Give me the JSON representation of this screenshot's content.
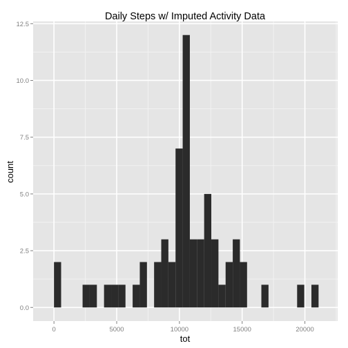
{
  "chart_data": {
    "type": "bar",
    "title": "Daily Steps w/ Imputed Activity Data",
    "xlabel": "tot",
    "ylabel": "count",
    "xlim": [
      -1660,
      22610
    ],
    "ylim": [
      -0.6,
      12.6
    ],
    "x_ticks": [
      0,
      5000,
      10000,
      15000,
      20000
    ],
    "x_tick_labels": [
      "0",
      "5000",
      "10000",
      "15000",
      "20000"
    ],
    "y_ticks": [
      0,
      2.5,
      5,
      7.5,
      10,
      12.5
    ],
    "y_tick_labels": [
      "0.0",
      "2.5",
      "5.0",
      "7.5",
      "10.0",
      "12.5"
    ],
    "grid": true,
    "bin_width": 570,
    "bins": [
      {
        "x0": 0,
        "x1": 570,
        "count": 2
      },
      {
        "x0": 2280,
        "x1": 2850,
        "count": 1
      },
      {
        "x0": 2850,
        "x1": 3420,
        "count": 1
      },
      {
        "x0": 3990,
        "x1": 4560,
        "count": 1
      },
      {
        "x0": 4560,
        "x1": 5130,
        "count": 1
      },
      {
        "x0": 5130,
        "x1": 5700,
        "count": 1
      },
      {
        "x0": 6270,
        "x1": 6840,
        "count": 1
      },
      {
        "x0": 6840,
        "x1": 7410,
        "count": 2
      },
      {
        "x0": 7980,
        "x1": 8550,
        "count": 2
      },
      {
        "x0": 8550,
        "x1": 9120,
        "count": 3
      },
      {
        "x0": 9120,
        "x1": 9690,
        "count": 2
      },
      {
        "x0": 9690,
        "x1": 10260,
        "count": 7
      },
      {
        "x0": 10260,
        "x1": 10830,
        "count": 12
      },
      {
        "x0": 10830,
        "x1": 11400,
        "count": 3
      },
      {
        "x0": 11400,
        "x1": 11970,
        "count": 3
      },
      {
        "x0": 11970,
        "x1": 12540,
        "count": 5
      },
      {
        "x0": 12540,
        "x1": 13110,
        "count": 3
      },
      {
        "x0": 13110,
        "x1": 13680,
        "count": 1
      },
      {
        "x0": 13680,
        "x1": 14250,
        "count": 2
      },
      {
        "x0": 14250,
        "x1": 14820,
        "count": 3
      },
      {
        "x0": 14820,
        "x1": 15390,
        "count": 2
      },
      {
        "x0": 16530,
        "x1": 17100,
        "count": 1
      },
      {
        "x0": 19380,
        "x1": 19950,
        "count": 1
      },
      {
        "x0": 20520,
        "x1": 21090,
        "count": 1
      }
    ],
    "colors": {
      "panel_background": "#e5e5e5",
      "grid_major": "#ffffff",
      "grid_minor": "#f2f2f2",
      "bar_fill": "#2b2b2b",
      "tick_text": "#7f7f7f",
      "title_text": "#000000"
    }
  }
}
